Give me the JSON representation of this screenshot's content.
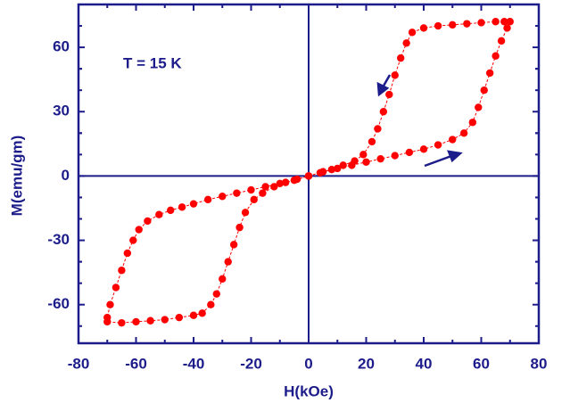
{
  "chart_data": {
    "type": "scatter",
    "annotation": "T = 15 K",
    "x_label": "H(kOe)",
    "y_label": "M(emu/gm)",
    "color": "#ff0000",
    "axis_color": "#1c1c8a",
    "xlim": [
      -80,
      80
    ],
    "xticks": [
      -80,
      -60,
      -40,
      -20,
      0,
      20,
      40,
      60,
      80
    ],
    "ylim": [
      -78,
      80
    ],
    "yticks": [
      -60,
      -30,
      0,
      30,
      60
    ],
    "x": [
      0,
      5,
      10,
      15,
      20,
      25,
      30,
      35,
      40,
      45,
      50,
      54,
      57,
      59,
      61,
      63,
      65,
      67,
      69,
      70,
      68,
      65,
      60,
      55,
      50,
      45,
      40,
      36,
      34,
      32,
      30,
      28,
      26,
      24,
      22,
      19,
      16,
      12,
      8,
      4,
      0,
      -4,
      -8,
      -12,
      -16,
      -19,
      -22,
      -24,
      -26,
      -28,
      -30,
      -32,
      -34,
      -37,
      -40,
      -45,
      -50,
      -55,
      -60,
      -65,
      -70,
      -70,
      -69,
      -67,
      -65,
      -63,
      -61,
      -59,
      -56,
      -52,
      -48,
      -44,
      -40,
      -35,
      -30,
      -25,
      -20,
      -15,
      -10,
      -5,
      0
    ],
    "values": [
      0,
      2,
      3.5,
      5,
      6.5,
      8,
      9.5,
      11,
      12.5,
      14.5,
      17,
      20,
      25,
      32,
      40,
      48,
      56,
      63,
      69,
      72,
      72,
      72,
      71.5,
      71,
      70.5,
      70,
      69,
      67,
      62,
      55,
      47,
      38,
      30,
      22,
      16,
      10,
      7,
      5,
      3,
      1.5,
      0,
      -1.5,
      -3,
      -5,
      -8,
      -11,
      -17,
      -24,
      -32,
      -40,
      -48,
      -55,
      -60,
      -64,
      -65,
      -66,
      -67,
      -67.5,
      -68,
      -68.5,
      -68,
      -66,
      -60,
      -52,
      -44,
      -36,
      -30,
      -25,
      -21,
      -18,
      -16,
      -14.5,
      -13,
      -11,
      -9.5,
      -8,
      -6.5,
      -5,
      -3.5,
      -2,
      0
    ]
  }
}
